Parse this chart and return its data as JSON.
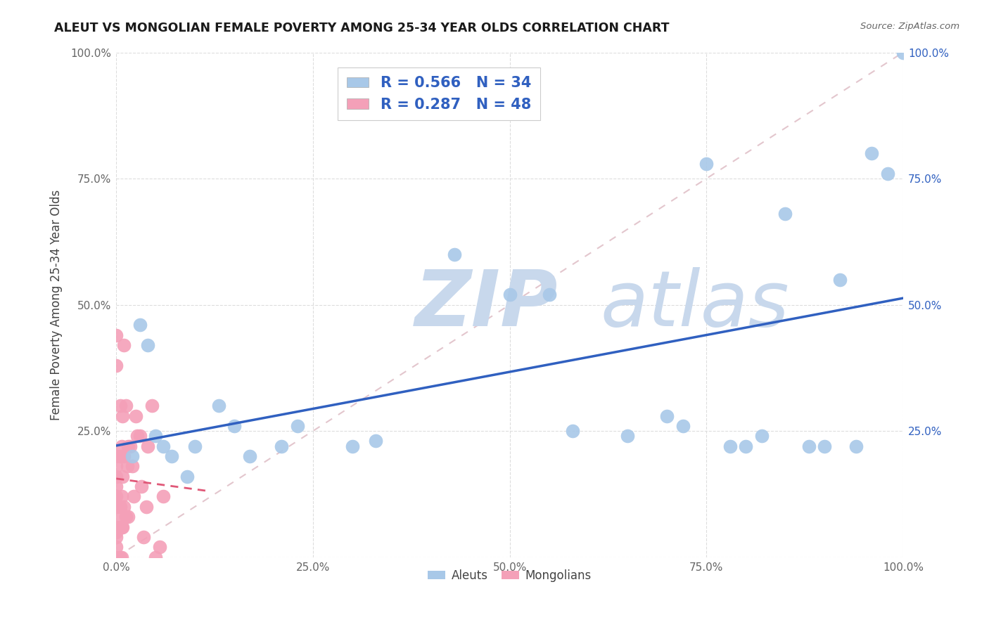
{
  "title": "ALEUT VS MONGOLIAN FEMALE POVERTY AMONG 25-34 YEAR OLDS CORRELATION CHART",
  "source": "Source: ZipAtlas.com",
  "ylabel": "Female Poverty Among 25-34 Year Olds",
  "xlim": [
    0,
    1.0
  ],
  "ylim": [
    0,
    1.0
  ],
  "xticks": [
    0.0,
    0.25,
    0.5,
    0.75,
    1.0
  ],
  "xticklabels": [
    "0.0%",
    "25.0%",
    "50.0%",
    "75.0%",
    "100.0%"
  ],
  "yticks": [
    0.25,
    0.5,
    0.75,
    1.0
  ],
  "yticklabels": [
    "25.0%",
    "50.0%",
    "75.0%",
    "100.0%"
  ],
  "right_yticks": [
    0.25,
    0.5,
    0.75,
    1.0
  ],
  "right_yticklabels": [
    "25.0%",
    "50.0%",
    "75.0%",
    "100.0%"
  ],
  "aleut_color": "#A8C8E8",
  "mongolian_color": "#F4A0B8",
  "aleut_R": 0.566,
  "aleut_N": 34,
  "mongolian_R": 0.287,
  "mongolian_N": 48,
  "aleut_line_color": "#3060C0",
  "mongolian_line_color": "#E05878",
  "diagonal_color": "#E0C0C8",
  "watermark_color": "#C8D8EC",
  "aleut_x": [
    0.02,
    0.03,
    0.04,
    0.05,
    0.06,
    0.07,
    0.09,
    0.1,
    0.13,
    0.15,
    0.17,
    0.21,
    0.23,
    0.3,
    0.33,
    0.43,
    0.5,
    0.55,
    0.58,
    0.65,
    0.7,
    0.72,
    0.75,
    0.78,
    0.8,
    0.82,
    0.85,
    0.88,
    0.9,
    0.92,
    0.94,
    0.96,
    0.98,
    1.0
  ],
  "aleut_y": [
    0.2,
    0.46,
    0.42,
    0.24,
    0.22,
    0.2,
    0.16,
    0.22,
    0.3,
    0.26,
    0.2,
    0.22,
    0.26,
    0.22,
    0.23,
    0.6,
    0.52,
    0.52,
    0.25,
    0.24,
    0.28,
    0.26,
    0.78,
    0.22,
    0.22,
    0.24,
    0.68,
    0.22,
    0.22,
    0.55,
    0.22,
    0.8,
    0.76,
    1.0
  ],
  "mongolian_x": [
    0.0,
    0.0,
    0.0,
    0.0,
    0.0,
    0.0,
    0.0,
    0.0,
    0.0,
    0.0,
    0.0,
    0.0,
    0.0,
    0.0,
    0.005,
    0.005,
    0.005,
    0.005,
    0.005,
    0.007,
    0.007,
    0.007,
    0.007,
    0.008,
    0.008,
    0.008,
    0.01,
    0.01,
    0.01,
    0.012,
    0.012,
    0.014,
    0.015,
    0.015,
    0.018,
    0.02,
    0.022,
    0.025,
    0.027,
    0.03,
    0.032,
    0.035,
    0.038,
    0.04,
    0.045,
    0.05,
    0.055,
    0.06
  ],
  "mongolian_y": [
    0.0,
    0.02,
    0.04,
    0.05,
    0.06,
    0.08,
    0.1,
    0.12,
    0.14,
    0.16,
    0.18,
    0.2,
    0.38,
    0.44,
    0.0,
    0.06,
    0.1,
    0.2,
    0.3,
    0.0,
    0.06,
    0.12,
    0.22,
    0.06,
    0.16,
    0.28,
    0.1,
    0.2,
    0.42,
    0.08,
    0.3,
    0.18,
    0.08,
    0.22,
    0.22,
    0.18,
    0.12,
    0.28,
    0.24,
    0.24,
    0.14,
    0.04,
    0.1,
    0.22,
    0.3,
    0.0,
    0.02,
    0.12
  ]
}
